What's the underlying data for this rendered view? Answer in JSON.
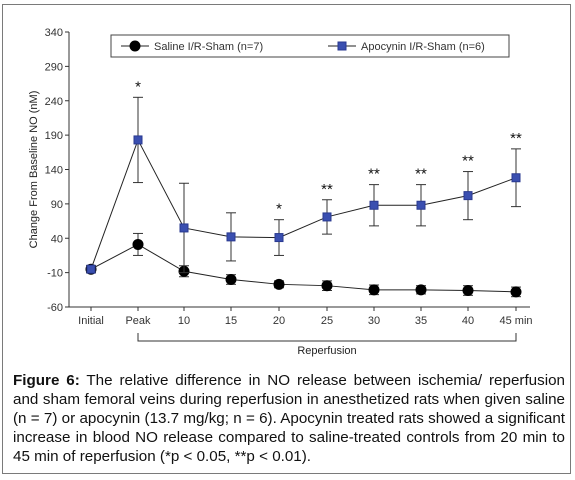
{
  "chart_data": {
    "type": "line",
    "ylabel": "Change From Baseline NO (nM)",
    "xlabel": "Reperfusion",
    "categories": [
      "Initial",
      "Peak",
      "10",
      "15",
      "20",
      "25",
      "30",
      "35",
      "40",
      "45 min"
    ],
    "yticks": [
      340,
      290,
      240,
      190,
      140,
      90,
      40,
      -10,
      -60
    ],
    "ylim": [
      -60,
      340
    ],
    "series": [
      {
        "name": "Saline I/R-Sham (n=7)",
        "color": "#000000",
        "marker": "circle",
        "x": [
          0,
          1,
          2,
          3,
          4,
          5,
          6,
          7,
          8,
          9
        ],
        "values": [
          -5,
          31,
          -8,
          -20,
          -27,
          -29,
          -35,
          -35,
          -36,
          -38
        ],
        "err_up": [
          5,
          16,
          8,
          7,
          5,
          7,
          7,
          6,
          7,
          7
        ],
        "err_down": [
          5,
          16,
          8,
          7,
          5,
          7,
          7,
          6,
          7,
          7
        ]
      },
      {
        "name": "Apocynin I/R-Sham (n=6)",
        "color": "#3a4fb0",
        "marker": "square",
        "x": [
          0,
          1,
          2,
          3,
          4,
          5,
          6,
          7,
          8,
          9
        ],
        "values": [
          -5,
          183,
          55,
          42,
          41,
          71,
          88,
          88,
          102,
          128
        ],
        "err_up": [
          5,
          62,
          65,
          35,
          26,
          25,
          30,
          30,
          35,
          42
        ],
        "err_down": [
          5,
          62,
          65,
          35,
          26,
          25,
          30,
          30,
          35,
          42
        ]
      }
    ],
    "annotations": [
      {
        "x": 1,
        "text": "*"
      },
      {
        "x": 4,
        "text": "*"
      },
      {
        "x": 5,
        "text": "**"
      },
      {
        "x": 6,
        "text": "**"
      },
      {
        "x": 7,
        "text": "**"
      },
      {
        "x": 8,
        "text": "**"
      },
      {
        "x": 9,
        "text": "**"
      }
    ],
    "legend": "top"
  },
  "caption": {
    "label": "Figure 6:",
    "text": "The relative difference in NO release between ischemia/ reperfusion and sham femoral veins during reperfusion in anesthetized rats when given saline (n = 7) or apocynin (13.7 mg/kg; n = 6). Apocynin treated rats showed a significant increase in blood NO release compared to saline-treated controls from 20 min to 45 min of reperfusion (*p < 0.05, **p < 0.01)."
  }
}
